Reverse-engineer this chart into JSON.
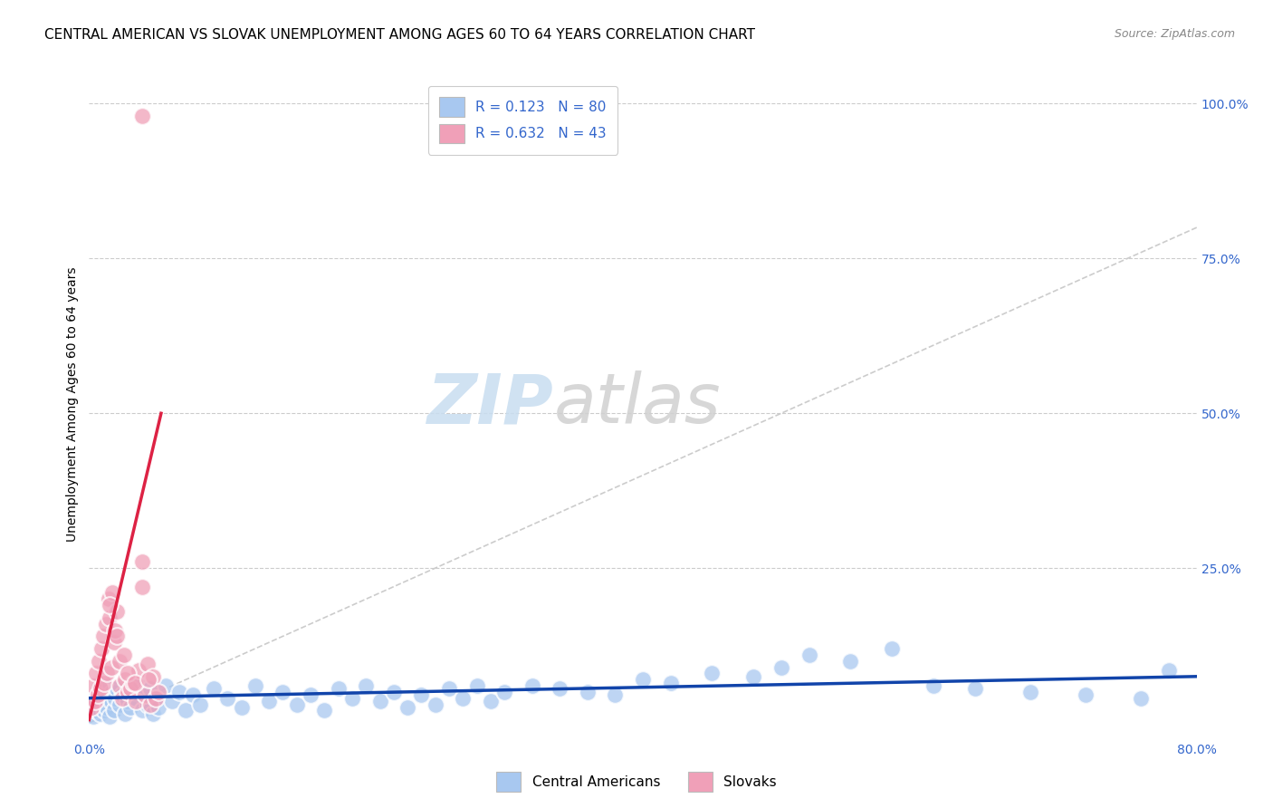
{
  "title": "CENTRAL AMERICAN VS SLOVAK UNEMPLOYMENT AMONG AGES 60 TO 64 YEARS CORRELATION CHART",
  "source": "Source: ZipAtlas.com",
  "ylabel": "Unemployment Among Ages 60 to 64 years",
  "xlim": [
    0.0,
    0.8
  ],
  "ylim": [
    -0.02,
    1.05
  ],
  "plot_ylim": [
    0.0,
    1.0
  ],
  "blue_color": "#a8c8f0",
  "pink_color": "#f0a0b8",
  "blue_line_color": "#1144aa",
  "pink_line_color": "#dd2244",
  "diagonal_color": "#cccccc",
  "r_blue": 0.123,
  "n_blue": 80,
  "r_pink": 0.632,
  "n_pink": 43,
  "watermark_zip": "ZIP",
  "watermark_atlas": "atlas",
  "legend_labels": [
    "Central Americans",
    "Slovaks"
  ],
  "blue_points_x": [
    0.002,
    0.003,
    0.004,
    0.005,
    0.006,
    0.007,
    0.008,
    0.009,
    0.01,
    0.011,
    0.012,
    0.013,
    0.014,
    0.015,
    0.016,
    0.017,
    0.018,
    0.019,
    0.02,
    0.022,
    0.024,
    0.026,
    0.028,
    0.03,
    0.032,
    0.034,
    0.036,
    0.038,
    0.04,
    0.042,
    0.044,
    0.046,
    0.048,
    0.05,
    0.055,
    0.06,
    0.065,
    0.07,
    0.075,
    0.08,
    0.09,
    0.1,
    0.11,
    0.12,
    0.13,
    0.14,
    0.15,
    0.16,
    0.17,
    0.18,
    0.19,
    0.2,
    0.21,
    0.22,
    0.23,
    0.24,
    0.25,
    0.26,
    0.27,
    0.28,
    0.29,
    0.3,
    0.32,
    0.34,
    0.36,
    0.38,
    0.4,
    0.42,
    0.45,
    0.48,
    0.5,
    0.52,
    0.55,
    0.58,
    0.61,
    0.64,
    0.68,
    0.72,
    0.76,
    0.78
  ],
  "blue_points_y": [
    0.03,
    0.01,
    0.02,
    0.045,
    0.025,
    0.055,
    0.015,
    0.035,
    0.05,
    0.02,
    0.04,
    0.025,
    0.06,
    0.01,
    0.035,
    0.05,
    0.02,
    0.04,
    0.055,
    0.03,
    0.045,
    0.015,
    0.035,
    0.025,
    0.05,
    0.04,
    0.06,
    0.02,
    0.045,
    0.03,
    0.055,
    0.015,
    0.04,
    0.025,
    0.06,
    0.035,
    0.05,
    0.02,
    0.045,
    0.03,
    0.055,
    0.04,
    0.025,
    0.06,
    0.035,
    0.05,
    0.03,
    0.045,
    0.02,
    0.055,
    0.04,
    0.06,
    0.035,
    0.05,
    0.025,
    0.045,
    0.03,
    0.055,
    0.04,
    0.06,
    0.035,
    0.05,
    0.06,
    0.055,
    0.05,
    0.045,
    0.07,
    0.065,
    0.08,
    0.075,
    0.09,
    0.11,
    0.1,
    0.12,
    0.06,
    0.055,
    0.05,
    0.045,
    0.04,
    0.085
  ],
  "pink_points_x": [
    0.002,
    0.003,
    0.004,
    0.005,
    0.006,
    0.007,
    0.008,
    0.009,
    0.01,
    0.011,
    0.012,
    0.013,
    0.014,
    0.015,
    0.016,
    0.017,
    0.018,
    0.019,
    0.02,
    0.022,
    0.024,
    0.026,
    0.028,
    0.03,
    0.032,
    0.034,
    0.036,
    0.038,
    0.04,
    0.042,
    0.044,
    0.046,
    0.048,
    0.05,
    0.022,
    0.028,
    0.033,
    0.038,
    0.043,
    0.025,
    0.015,
    0.02,
    0.038
  ],
  "pink_points_y": [
    0.025,
    0.06,
    0.035,
    0.08,
    0.045,
    0.1,
    0.055,
    0.12,
    0.14,
    0.065,
    0.16,
    0.08,
    0.2,
    0.17,
    0.09,
    0.21,
    0.13,
    0.15,
    0.18,
    0.06,
    0.04,
    0.07,
    0.05,
    0.055,
    0.065,
    0.035,
    0.085,
    0.22,
    0.045,
    0.095,
    0.03,
    0.075,
    0.04,
    0.05,
    0.1,
    0.08,
    0.065,
    0.26,
    0.07,
    0.11,
    0.19,
    0.14,
    0.98
  ],
  "title_fontsize": 11,
  "axis_label_fontsize": 10,
  "tick_fontsize": 10,
  "legend_fontsize": 11,
  "source_fontsize": 9,
  "watermark_fontsize_zip": 55,
  "watermark_fontsize_atlas": 55
}
